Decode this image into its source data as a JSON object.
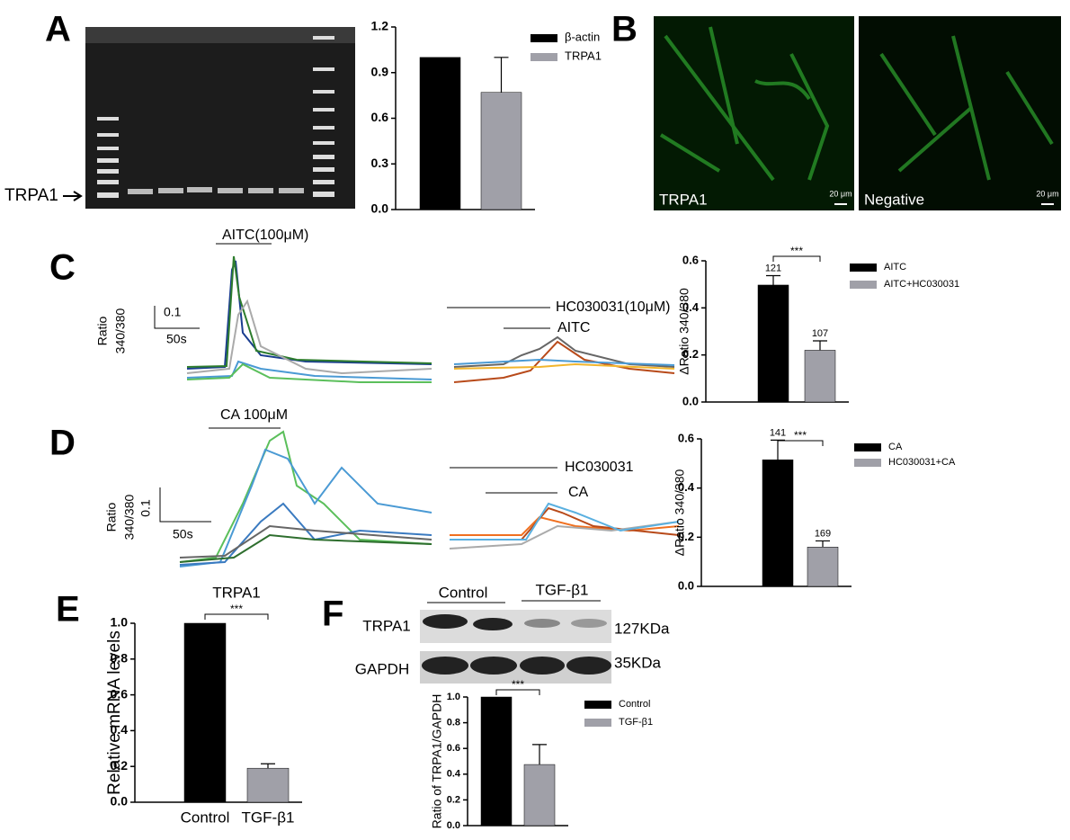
{
  "panel_labels": [
    "A",
    "B",
    "C",
    "D",
    "E",
    "F"
  ],
  "gel": {
    "band_label": "TRPA1"
  },
  "images": {
    "left": "TRPA1",
    "right": "Negative",
    "scale": "20 μm"
  },
  "traces": {
    "c_stimulus": "AITC(100μM)",
    "c_ylabel": "Ratio",
    "c_yunit": "340/380",
    "c_yscale": "0.1",
    "c_xscale": "50s",
    "c_blocker": "HC030031(10μM)",
    "c_agonist": "AITC",
    "d_stimulus": "CA 100μM",
    "d_ylabel": "Ratio",
    "d_yunit": "340/380",
    "d_yscale": "0.1",
    "d_xscale": "50s",
    "d_blocker": "HC030031",
    "d_agonist": "CA"
  },
  "blot": {
    "group1": "Control",
    "group2": "TGF-β1",
    "row1": "TRPA1",
    "row2": "GAPDH",
    "size1": "127KDa",
    "size2": "35KDa"
  },
  "chart_data": [
    {
      "type": "bar",
      "categories": [
        "β-actin",
        "TRPA1"
      ],
      "values": [
        1.0,
        0.77
      ],
      "errors": [
        null,
        0.23
      ],
      "colors": [
        "#000000",
        "#a0a0a8"
      ],
      "ylim": [
        0,
        1.2
      ],
      "yticks": [
        {
          "value": 0,
          "label": "0.0"
        },
        0.3,
        0.6,
        0.9,
        1.2
      ],
      "legend": true
    },
    {
      "type": "bar",
      "categories": [
        "AITC",
        "AITC+HC030031"
      ],
      "values": [
        0.497,
        0.22
      ],
      "errors": [
        0.04,
        0.04
      ],
      "colors": [
        "#000000",
        "#a0a0a8"
      ],
      "annotations": [
        "121",
        "107"
      ],
      "significance": "***",
      "ylabel": "ΔRatio 340/380",
      "ylim": [
        0,
        0.6
      ],
      "yticks": [
        {
          "value": 0,
          "label": "0.0"
        },
        0.2,
        0.4,
        0.6
      ],
      "legend": true
    },
    {
      "type": "bar",
      "categories": [
        "CA",
        "HC030031+CA"
      ],
      "values": [
        0.515,
        0.16
      ],
      "errors": [
        0.08,
        0.025
      ],
      "colors": [
        "#000000",
        "#a0a0a8"
      ],
      "annotations": [
        "141",
        "169"
      ],
      "significance": "***",
      "ylabel": "ΔRatio 340/380",
      "ylim": [
        0,
        0.6
      ],
      "yticks": [
        {
          "value": 0,
          "label": "0.0"
        },
        0.2,
        0.4,
        0.6
      ],
      "legend": true
    },
    {
      "type": "bar",
      "title": "TRPA1",
      "categories": [
        "Control",
        "TGF-β1"
      ],
      "values": [
        1.0,
        0.19
      ],
      "errors": [
        null,
        0.025
      ],
      "colors": [
        "#000000",
        "#a0a0a8"
      ],
      "significance": "***",
      "ylabel": "Relative mRNA levels",
      "ylim": [
        0,
        1.0
      ],
      "yticks": [
        {
          "value": 0,
          "label": "0.0"
        },
        0.2,
        0.4,
        0.6,
        0.8,
        {
          "value": 1,
          "label": "1.0"
        }
      ],
      "legend": false
    },
    {
      "type": "bar",
      "categories": [
        "Control",
        "TGF-β1"
      ],
      "values": [
        1.0,
        0.475
      ],
      "errors": [
        null,
        0.155
      ],
      "colors": [
        "#000000",
        "#a0a0a8"
      ],
      "significance": "***",
      "ylabel": "Ratio of TRPA1/GAPDH",
      "ylim": [
        0,
        1.0
      ],
      "yticks": [
        {
          "value": 0,
          "label": "0.0"
        },
        0.2,
        0.4,
        0.6,
        0.8,
        {
          "value": 1,
          "label": "1.0"
        }
      ],
      "legend": true
    }
  ]
}
